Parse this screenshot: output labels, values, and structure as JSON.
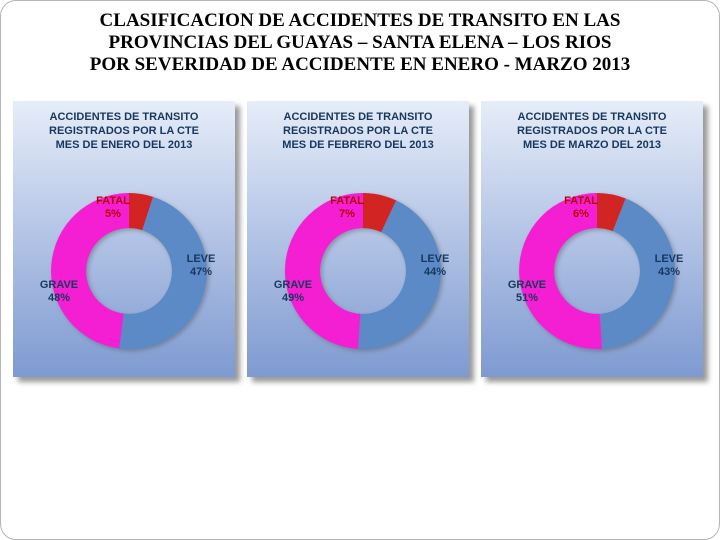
{
  "slide": {
    "title_lines": [
      "CLASIFICACION DE ACCIDENTES DE TRANSITO EN LAS",
      "PROVINCIAS DEL GUAYAS – SANTA ELENA – LOS RIOS",
      "POR SEVERIDAD DE ACCIDENTE EN ENERO - MARZO 2013"
    ]
  },
  "palette": {
    "fatal": "#d32424",
    "leve": "#5b8ac6",
    "grave": "#f41fd3",
    "label_navy": "#17375e",
    "label_red": "#b30000",
    "panel_gradient_top": "#e6edf8",
    "panel_gradient_bottom": "#7e9ad0"
  },
  "chart_data": [
    {
      "type": "pie",
      "subtype": "donut",
      "donut_hole": 0.55,
      "start_angle_deg": -90,
      "direction": "clockwise",
      "legend": "none",
      "title_lines": [
        "ACCIDENTES DE TRANSITO",
        "REGISTRADOS POR LA CTE",
        "MES DE ENERO DEL 2013"
      ],
      "categories": [
        "FATAL",
        "LEVE",
        "GRAVE"
      ],
      "values": [
        5,
        47,
        48
      ],
      "labels": [
        {
          "name": "FATAL",
          "pct": "5%"
        },
        {
          "name": "LEVE",
          "pct": "47%"
        },
        {
          "name": "GRAVE",
          "pct": "48%"
        }
      ]
    },
    {
      "type": "pie",
      "subtype": "donut",
      "donut_hole": 0.55,
      "start_angle_deg": -90,
      "direction": "clockwise",
      "legend": "none",
      "title_lines": [
        "ACCIDENTES DE TRANSITO",
        "REGISTRADOS POR LA CTE",
        "MES DE FEBRERO DEL 2013"
      ],
      "categories": [
        "FATAL",
        "LEVE",
        "GRAVE"
      ],
      "values": [
        7,
        44,
        49
      ],
      "labels": [
        {
          "name": "FATAL",
          "pct": "7%"
        },
        {
          "name": "LEVE",
          "pct": "44%"
        },
        {
          "name": "GRAVE",
          "pct": "49%"
        }
      ]
    },
    {
      "type": "pie",
      "subtype": "donut",
      "donut_hole": 0.55,
      "start_angle_deg": -90,
      "direction": "clockwise",
      "legend": "none",
      "title_lines": [
        "ACCIDENTES DE TRANSITO",
        "REGISTRADOS POR LA CTE",
        "MES DE MARZO DEL 2013"
      ],
      "categories": [
        "FATAL",
        "LEVE",
        "GRAVE"
      ],
      "values": [
        6,
        43,
        51
      ],
      "labels": [
        {
          "name": "FATAL",
          "pct": "6%"
        },
        {
          "name": "LEVE",
          "pct": "43%"
        },
        {
          "name": "GRAVE",
          "pct": "51%"
        }
      ]
    }
  ]
}
